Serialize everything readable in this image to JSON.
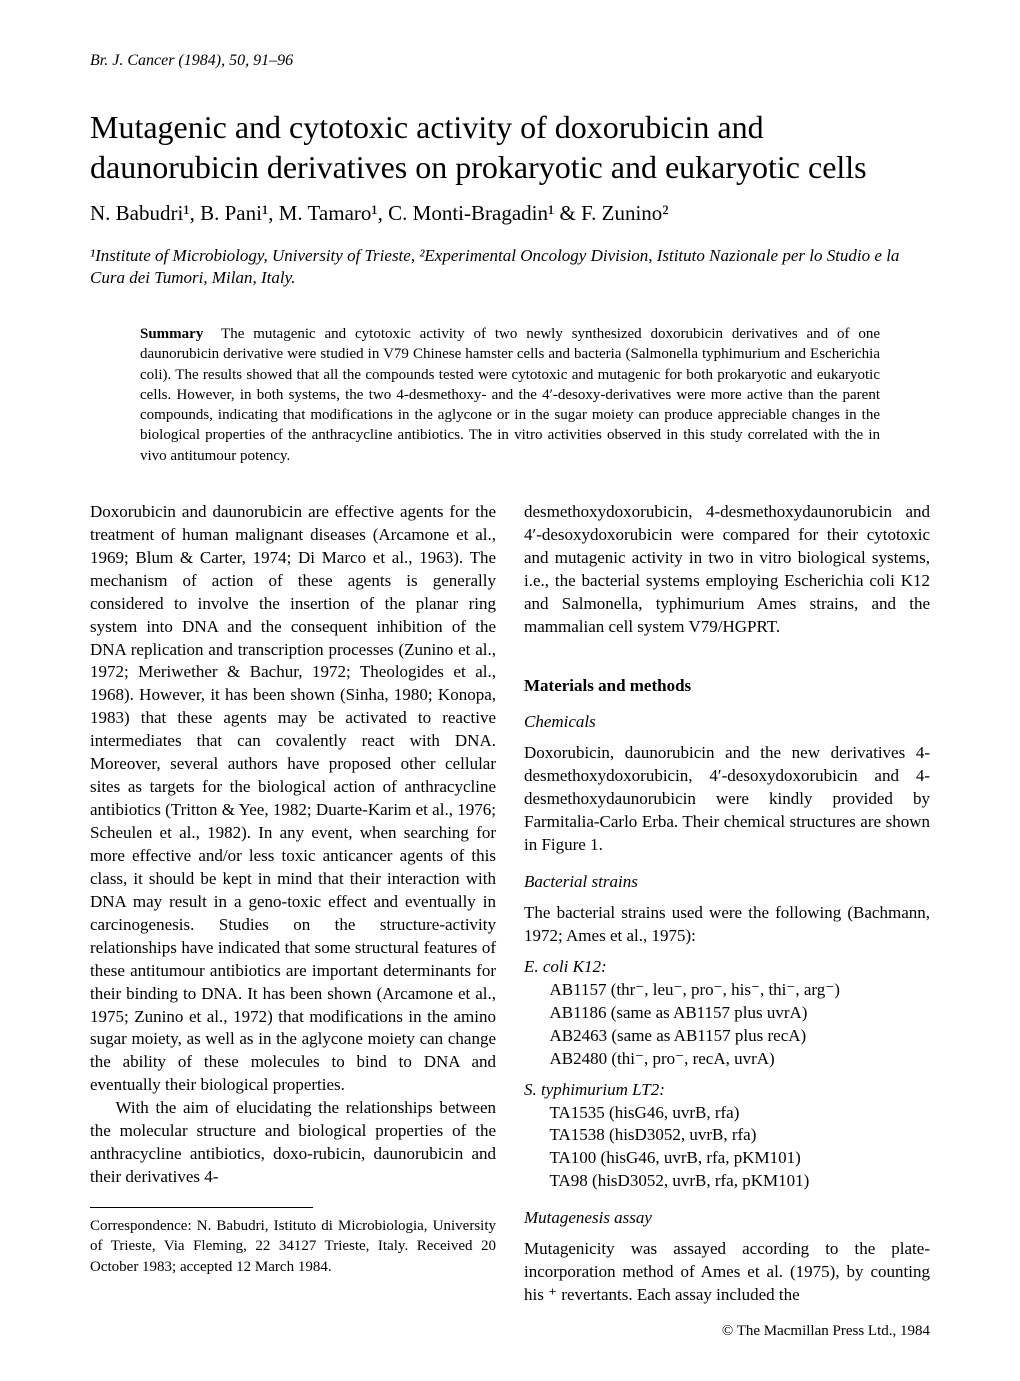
{
  "journal_header": "Br. J. Cancer (1984), 50, 91–96",
  "title": "Mutagenic and cytotoxic activity of doxorubicin and daunorubicin derivatives on prokaryotic and eukaryotic cells",
  "authors": "N. Babudri¹, B. Pani¹, M. Tamaro¹, C. Monti-Bragadin¹ & F. Zunino²",
  "affiliations": "¹Institute of Microbiology, University of Trieste, ²Experimental Oncology Division, Istituto Nazionale per lo Studio e la Cura dei Tumori, Milan, Italy.",
  "summary_label": "Summary",
  "summary_text": "The mutagenic and cytotoxic activity of two newly synthesized doxorubicin derivatives and of one daunorubicin derivative were studied in V79 Chinese hamster cells and bacteria (Salmonella typhimurium and Escherichia coli). The results showed that all the compounds tested were cytotoxic and mutagenic for both prokaryotic and eukaryotic cells. However, in both systems, the two 4-desmethoxy- and the 4′-desoxy-derivatives were more active than the parent compounds, indicating that modifications in the aglycone or in the sugar moiety can produce appreciable changes in the biological properties of the anthracycline antibiotics. The in vitro activities observed in this study correlated with the in vivo antitumour potency.",
  "left_col": {
    "intro_p1": "Doxorubicin and daunorubicin are effective agents for the treatment of human malignant diseases (Arcamone et al., 1969; Blum & Carter, 1974; Di Marco et al., 1963). The mechanism of action of these agents is generally considered to involve the insertion of the planar ring system into DNA and the consequent inhibition of the DNA replication and transcription processes (Zunino et al., 1972; Meriwether & Bachur, 1972; Theologides et al., 1968). However, it has been shown (Sinha, 1980; Konopa, 1983) that these agents may be activated to reactive intermediates that can covalently react with DNA. Moreover, several authors have proposed other cellular sites as targets for the biological action of anthracycline antibiotics (Tritton & Yee, 1982; Duarte-Karim et al., 1976; Scheulen et al., 1982). In any event, when searching for more effective and/or less toxic anticancer agents of this class, it should be kept in mind that their interaction with DNA may result in a geno-toxic effect and eventually in carcinogenesis. Studies on the structure-activity relationships have indicated that some structural features of these antitumour antibiotics are important determinants for their binding to DNA. It has been shown (Arcamone et al., 1975; Zunino et al., 1972) that modifications in the amino sugar moiety, as well as in the aglycone moiety can change the ability of these molecules to bind to DNA and eventually their biological properties.",
    "intro_p2": "With the aim of elucidating the relationships between the molecular structure and biological properties of the anthracycline antibiotics, doxo-rubicin, daunorubicin and their derivatives 4-",
    "correspondence": "Correspondence: N. Babudri, Istituto di Microbiologia, University of Trieste, Via Fleming, 22 34127 Trieste, Italy. Received 20 October 1983; accepted 12 March 1984."
  },
  "right_col": {
    "intro_cont": "desmethoxydoxorubicin, 4-desmethoxydaunorubicin and 4′-desoxydoxorubicin were compared for their cytotoxic and mutagenic activity in two in vitro biological systems, i.e., the bacterial systems employing Escherichia coli K12 and Salmonella, typhimurium Ames strains, and the mammalian cell system V79/HGPRT.",
    "materials_heading": "Materials and methods",
    "chemicals_heading": "Chemicals",
    "chemicals_text": "Doxorubicin, daunorubicin and the new derivatives 4-desmethoxydoxorubicin, 4′-desoxydoxorubicin and 4-desmethoxydaunorubicin were kindly provided by Farmitalia-Carlo Erba. Their chemical structures are shown in Figure 1.",
    "bacterial_heading": "Bacterial strains",
    "bacterial_intro": "The bacterial strains used were the following (Bachmann, 1972; Ames et al., 1975):",
    "ecoli_head": "E. coli K12:",
    "ecoli_s1": "AB1157 (thr⁻, leu⁻, pro⁻, his⁻, thi⁻, arg⁻)",
    "ecoli_s2": "AB1186 (same as AB1157 plus uvrA)",
    "ecoli_s3": "AB2463 (same as AB1157 plus recA)",
    "ecoli_s4": "AB2480 (thi⁻, pro⁻, recA, uvrA)",
    "styph_head": "S. typhimurium LT2:",
    "styph_s1": "TA1535 (hisG46, uvrB, rfa)",
    "styph_s2": "TA1538 (hisD3052, uvrB, rfa)",
    "styph_s3": "TA100 (hisG46, uvrB, rfa, pKM101)",
    "styph_s4": "TA98 (hisD3052, uvrB, rfa, pKM101)",
    "mutagenesis_heading": "Mutagenesis assay",
    "mutagenesis_text": "Mutagenicity was assayed according to the plate-incorporation method of Ames et al. (1975), by counting his ⁺ revertants. Each assay included the"
  },
  "copyright": "© The Macmillan Press Ltd., 1984"
}
